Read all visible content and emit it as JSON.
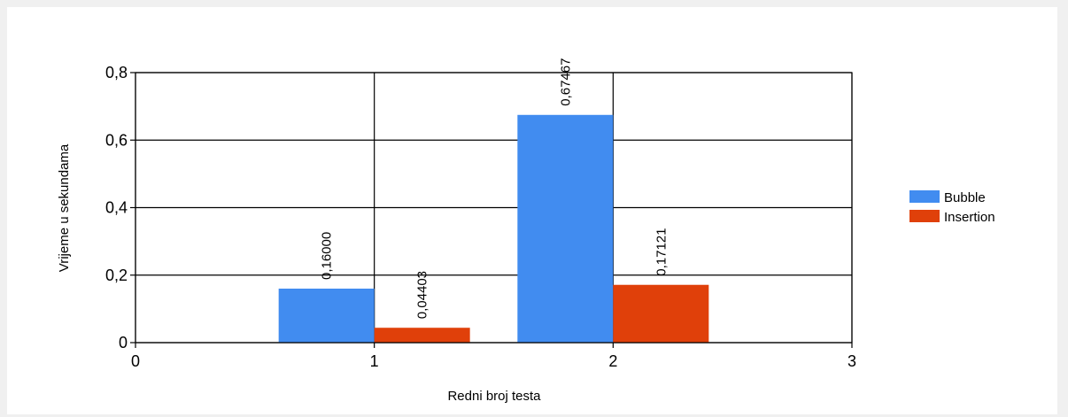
{
  "chart_data": {
    "type": "bar",
    "title": "",
    "xlabel": "Redni broj testa",
    "ylabel": "Vrijeme u sekundama",
    "x": [
      1,
      2
    ],
    "xlim": [
      0,
      3
    ],
    "ylim": [
      0,
      0.8
    ],
    "x_ticks": [
      "0",
      "1",
      "2",
      "3"
    ],
    "y_ticks": [
      "0",
      "0,2",
      "0,4",
      "0,6",
      "0,8"
    ],
    "grid": true,
    "legend_position": "right",
    "series": [
      {
        "name": "Bubble",
        "color": "#418cf0",
        "values": [
          0.16,
          0.67467
        ],
        "labels": [
          "0,16000",
          "0,67467"
        ]
      },
      {
        "name": "Insertion",
        "color": "#e0400a",
        "values": [
          0.04403,
          0.17121
        ],
        "labels": [
          "0,04403",
          "0,17121"
        ]
      }
    ]
  }
}
